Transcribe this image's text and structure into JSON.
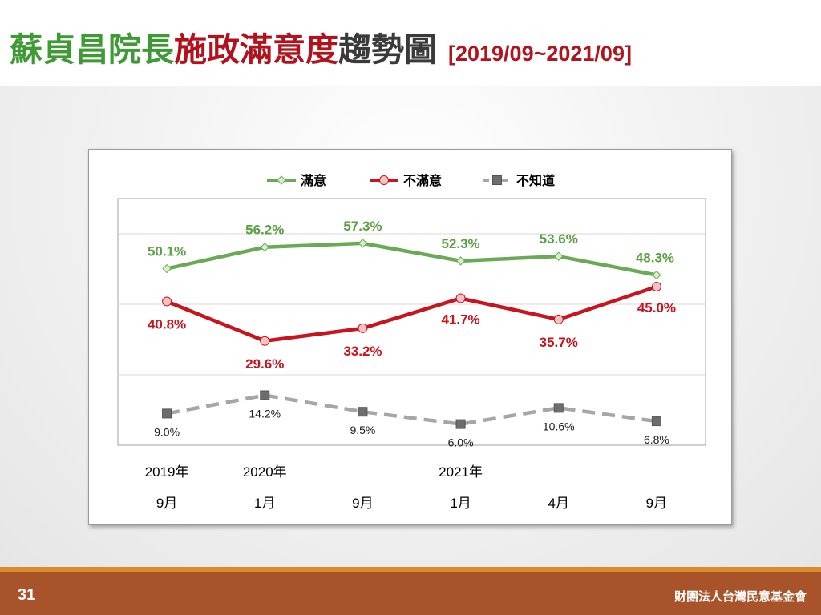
{
  "title": {
    "part1": "蘇貞昌院長",
    "part2": "施政滿意度",
    "part3": "趨勢圖",
    "range": "[2019/09~2021/09]"
  },
  "colors": {
    "satisfied": "#6aaa55",
    "dissatisfied": "#c8141e",
    "unknown": "#a6a6a6"
  },
  "chart_data": {
    "type": "line",
    "categories": [
      "2019年9月",
      "2020年1月",
      "2020年9月",
      "2021年1月",
      "2021年4月",
      "2021年9月"
    ],
    "x_labels": [
      {
        "year": "2019年",
        "month": "9月"
      },
      {
        "year": "2020年",
        "month": "1月"
      },
      {
        "year": "",
        "month": "9月"
      },
      {
        "year": "2021年",
        "month": "1月"
      },
      {
        "year": "",
        "month": "4月"
      },
      {
        "year": "",
        "month": "9月"
      }
    ],
    "series": [
      {
        "name": "滿意",
        "values": [
          50.1,
          56.2,
          57.3,
          52.3,
          53.6,
          48.3
        ],
        "labels": [
          "50.1%",
          "56.2%",
          "57.3%",
          "52.3%",
          "53.6%",
          "48.3%"
        ]
      },
      {
        "name": "不滿意",
        "values": [
          40.8,
          29.6,
          33.2,
          41.7,
          35.7,
          45.0
        ],
        "labels": [
          "40.8%",
          "29.6%",
          "33.2%",
          "41.7%",
          "35.7%",
          "45.0%"
        ]
      },
      {
        "name": "不知道",
        "values": [
          9.0,
          14.2,
          9.5,
          6.0,
          10.6,
          6.8
        ],
        "labels": [
          "9.0%",
          "14.2%",
          "9.5%",
          "6.0%",
          "10.6%",
          "6.8%"
        ]
      }
    ],
    "ylim": [
      0,
      70
    ],
    "grid": true,
    "legend": "top"
  },
  "footer": {
    "page": "31",
    "org": "財團法人台灣民意基金會"
  }
}
